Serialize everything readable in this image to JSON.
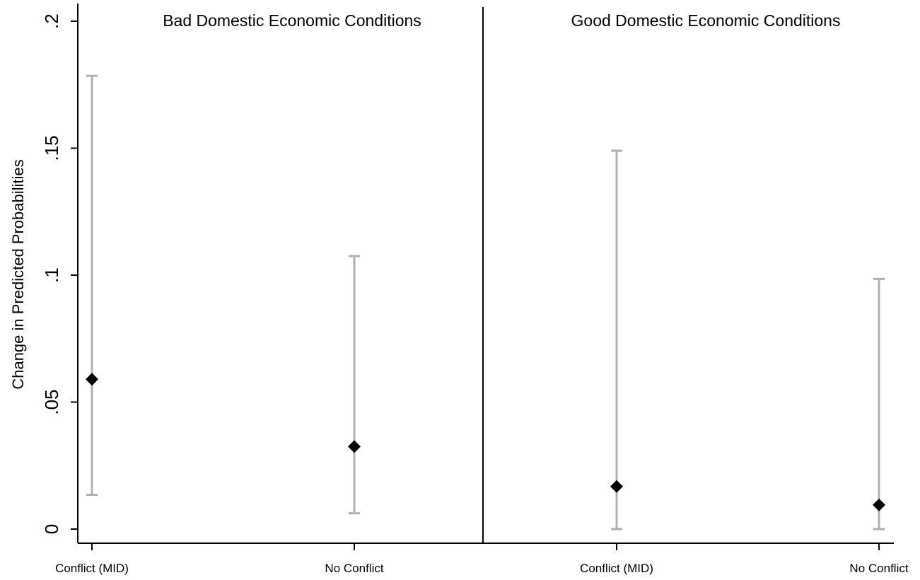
{
  "chart_data": {
    "type": "scatter",
    "subtype": "point-estimate-with-confidence-intervals",
    "ylabel": "Change in Predicted Probabilities",
    "xlabel": "",
    "ylim": [
      0,
      0.2
    ],
    "yticks": [
      0,
      0.05,
      0.1,
      0.15,
      0.2
    ],
    "ytick_labels": [
      "0",
      ".05",
      ".1",
      ".15",
      ".2"
    ],
    "grid": false,
    "legend": "none",
    "colors": {
      "point": "#000000",
      "ci": "#b0b0b0",
      "axis": "#000000"
    },
    "panels": [
      {
        "title": "Bad Domestic Economic Conditions",
        "categories": [
          "Conflict (MID)",
          "No Conflict"
        ],
        "estimate": [
          0.059,
          0.0325
        ],
        "ci_lower": [
          0.0135,
          0.0062
        ],
        "ci_upper": [
          0.1785,
          0.1075
        ]
      },
      {
        "title": "Good Domestic Economic Conditions",
        "categories": [
          "Conflict (MID)",
          "No Conflict"
        ],
        "estimate": [
          0.0168,
          0.0095
        ],
        "ci_lower": [
          0.0,
          0.0
        ],
        "ci_upper": [
          0.149,
          0.0985
        ]
      }
    ]
  }
}
